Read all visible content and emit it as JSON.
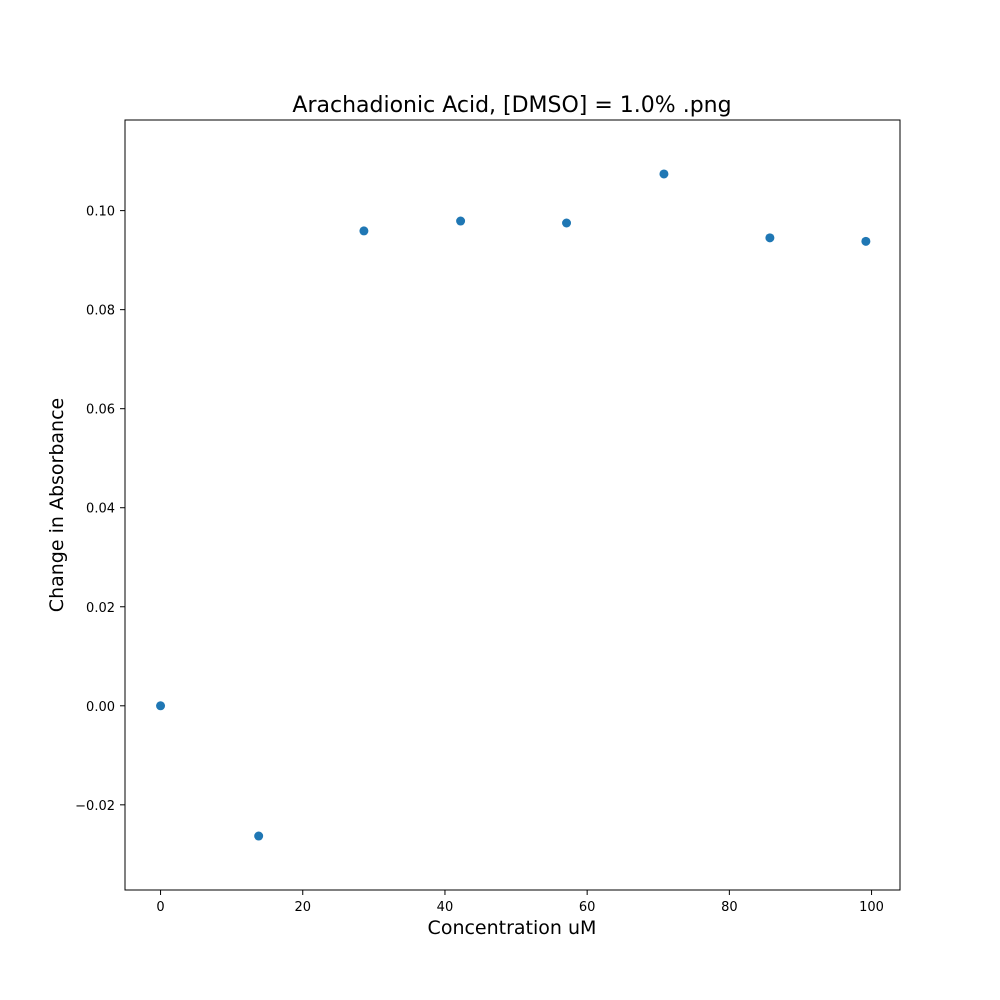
{
  "chart_data": {
    "type": "scatter",
    "title": "Arachadionic Acid, [DMSO] = 1.0% .png",
    "xlabel": "Concentration uM",
    "ylabel": "Change in Absorbance",
    "xlim": [
      -5,
      104
    ],
    "ylim": [
      -0.0372,
      0.1183
    ],
    "xticks": [
      0,
      20,
      40,
      60,
      80,
      100
    ],
    "xtick_labels": [
      "0",
      "20",
      "40",
      "60",
      "80",
      "100"
    ],
    "yticks": [
      -0.02,
      0.0,
      0.02,
      0.04,
      0.06,
      0.08,
      0.1
    ],
    "ytick_labels": [
      "−0.02",
      "0.00",
      "0.02",
      "0.04",
      "0.06",
      "0.08",
      "0.10"
    ],
    "grid": false,
    "legend": "none",
    "marker_color": "#1f77b4",
    "series": [
      {
        "x": [
          0,
          13.8,
          28.6,
          42.2,
          57.1,
          70.8,
          85.7,
          99.2
        ],
        "y": [
          0.0,
          -0.0263,
          0.0959,
          0.0979,
          0.0975,
          0.1074,
          0.0945,
          0.0938
        ]
      }
    ]
  }
}
